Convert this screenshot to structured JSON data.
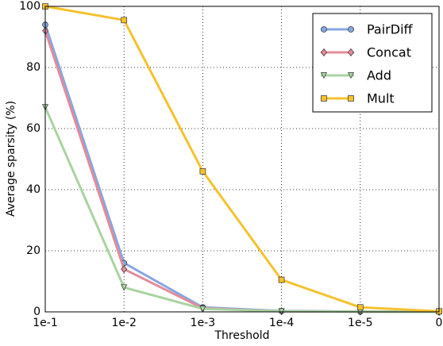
{
  "chart_data": {
    "type": "line",
    "x_label": "Threshold",
    "y_label": "Average sparsity (%)",
    "categories": [
      "1e-1",
      "1e-2",
      "1e-3",
      "1e-4",
      "1e-5",
      "0"
    ],
    "series": [
      {
        "name": "PairDiff",
        "color": "#86a7e0",
        "marker": "circle",
        "values": [
          94,
          16,
          1.5,
          0.3,
          0.1,
          0
        ]
      },
      {
        "name": "Concat",
        "color": "#e38c9b",
        "marker": "diamond",
        "values": [
          92,
          14,
          1.2,
          0.2,
          0.1,
          0
        ]
      },
      {
        "name": "Add",
        "color": "#a9d3a1",
        "marker": "triangle-down",
        "values": [
          67,
          8,
          1,
          0.2,
          0.1,
          0
        ]
      },
      {
        "name": "Mult",
        "color": "#f5c22e",
        "marker": "square",
        "values": [
          100,
          95.5,
          46,
          10.5,
          1.5,
          0.2
        ]
      }
    ],
    "ylim": [
      0,
      100
    ],
    "yticks": [
      0,
      20,
      40,
      60,
      80,
      100
    ],
    "grid": true,
    "legend": "upper right"
  }
}
